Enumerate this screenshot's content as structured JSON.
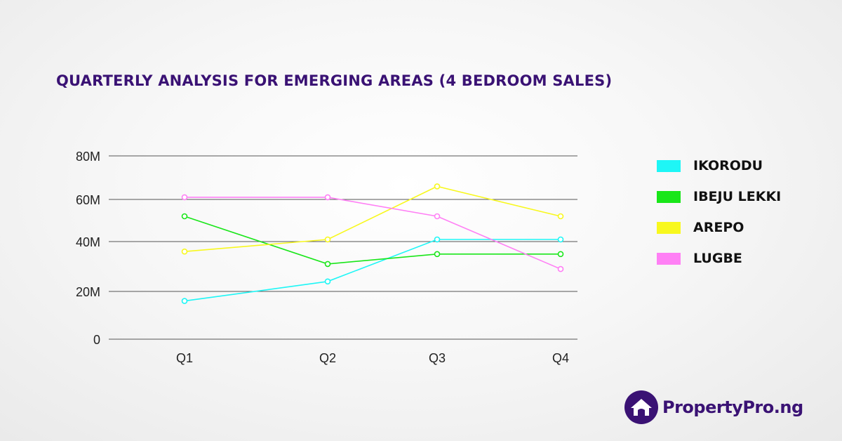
{
  "chart_data": {
    "type": "line",
    "title": "QUARTERLY ANALYSIS FOR EMERGING AREAS (4 BEDROOM SALES)",
    "categories": [
      "Q1",
      "Q2",
      "Q3",
      "Q4"
    ],
    "y_ticks": [
      {
        "value": 0,
        "label": "0"
      },
      {
        "value": 20,
        "label": "20M"
      },
      {
        "value": 40,
        "label": "40M"
      },
      {
        "value": 60,
        "label": "60M"
      },
      {
        "value": 80,
        "label": "80M"
      }
    ],
    "ylim": [
      0,
      80
    ],
    "y_unit": "M",
    "grid": true,
    "legend_position": "right",
    "series": [
      {
        "name": "IKORODU",
        "color": "#1ef6f6",
        "values": [
          16,
          24,
          41,
          41
        ]
      },
      {
        "name": "IBEJU LEKKI",
        "color": "#19e619",
        "values": [
          52,
          31,
          35,
          35
        ]
      },
      {
        "name": "AREPO",
        "color": "#f8f81e",
        "values": [
          36,
          41,
          66,
          52
        ]
      },
      {
        "name": "LUGBE",
        "color": "#ff80f5",
        "values": [
          61,
          61,
          52,
          29
        ]
      }
    ]
  },
  "brand": {
    "name": "PropertyPro.ng",
    "color": "#3a1274",
    "logo_icon": "house-icon"
  }
}
